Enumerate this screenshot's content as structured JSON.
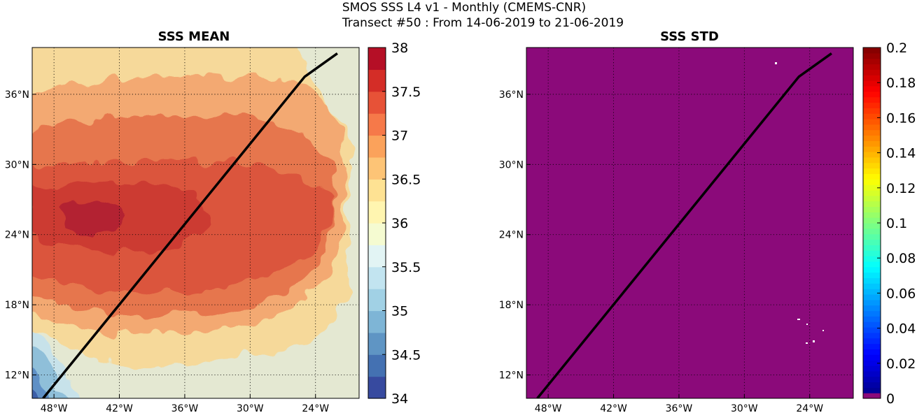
{
  "figure": {
    "title_line1": "SMOS SSS L4 v1 - Monthly (CMEMS-CNR)",
    "title_line2": "Transect #50 : From 14-06-2019 to 21-06-2019"
  },
  "panels": [
    {
      "title": "SSS MEAN",
      "x_ticks": [
        "48°W",
        "42°W",
        "36°W",
        "30°W",
        "24°W"
      ],
      "y_ticks": [
        "36°N",
        "30°N",
        "24°N",
        "18°N",
        "12°N"
      ],
      "colorbar": {
        "ticks": [
          "38",
          "37.5",
          "37",
          "36.5",
          "36",
          "35.5",
          "35",
          "34.5",
          "34"
        ],
        "min": 34,
        "max": 38,
        "colormap": "RdYlBu_r"
      }
    },
    {
      "title": "SSS STD",
      "x_ticks": [
        "48°W",
        "42°W",
        "36°W",
        "30°W",
        "24°W"
      ],
      "y_ticks": [
        "36°N",
        "30°N",
        "24°N",
        "18°N",
        "12°N"
      ],
      "fill_color": "#8b0a7a",
      "colorbar": {
        "ticks": [
          "0.2",
          "0.18",
          "0.16",
          "0.14",
          "0.12",
          "0.1",
          "0.08",
          "0.06",
          "0.04",
          "0.02",
          "0"
        ],
        "min": 0,
        "max": 0.2,
        "colormap": "jet"
      }
    }
  ],
  "chart_data": {
    "type": "heatmap",
    "lon_range": [
      -50,
      -20
    ],
    "lat_range": [
      10,
      40
    ],
    "transect": {
      "lon": [
        -49,
        -25,
        -22
      ],
      "lat": [
        10,
        37.5,
        39.5
      ]
    }
  }
}
